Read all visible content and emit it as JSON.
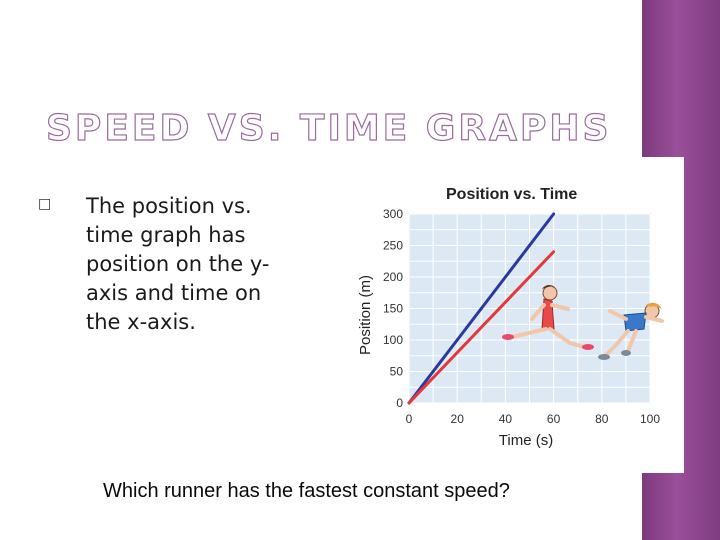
{
  "slide": {
    "title": "SPEED VS. TIME GRAPHS",
    "bullet_glyph": "□",
    "body_text": "The position vs. time graph has position on the y-axis and time on the x-axis.",
    "question": "Which runner has the fastest constant speed?",
    "colors": {
      "purple_band": "#8a4690",
      "title_outline": "#9b6aa0"
    }
  },
  "chart_data": {
    "type": "line",
    "title": "Position vs. Time",
    "xlabel": "Time (s)",
    "ylabel": "Position (m)",
    "xlim": [
      0,
      100
    ],
    "ylim": [
      0,
      300
    ],
    "xticks": [
      "0",
      "20",
      "40",
      "60",
      "80",
      "100"
    ],
    "yticks": [
      "0",
      "50",
      "100",
      "150",
      "200",
      "250",
      "300"
    ],
    "grid": true,
    "series": [
      {
        "color": "#2a3a9c",
        "x": [
          0,
          60
        ],
        "y": [
          0,
          300
        ]
      },
      {
        "color": "#e23a3a",
        "x": [
          0,
          60
        ],
        "y": [
          0,
          240
        ]
      }
    ],
    "illustration": "two-runners-icon"
  }
}
